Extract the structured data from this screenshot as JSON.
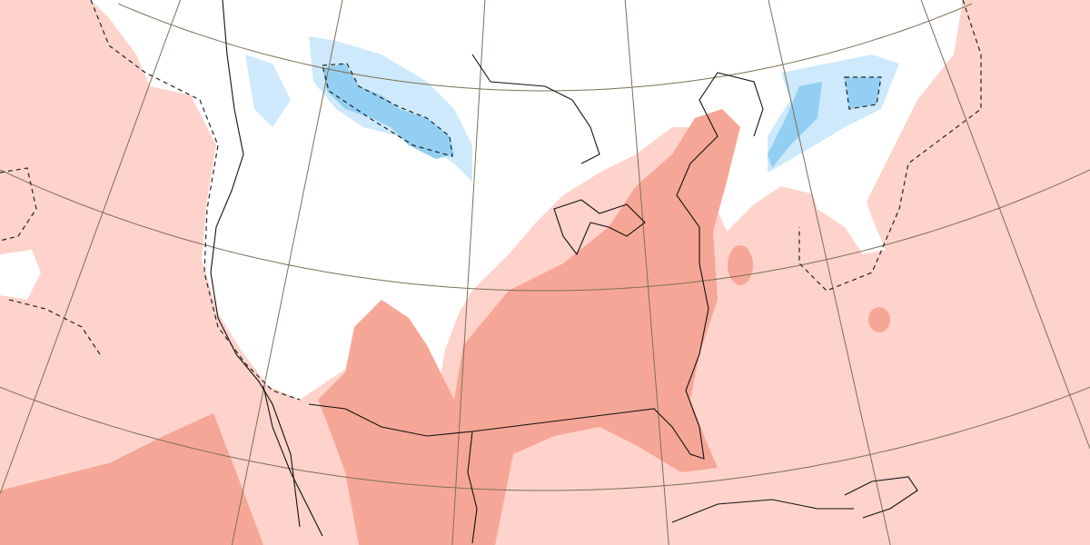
{
  "map": {
    "projection": "conic",
    "region": "North America",
    "colors": {
      "background_anomaly": "#fdd3cb",
      "neutral": "#ffffff",
      "warm_strong": "#f6a696",
      "cool_light": "#cde9fb",
      "cool_strong": "#93cff3",
      "coastline": "#111111",
      "graticule": "#7d6f55",
      "contour_dashed": "#222222"
    },
    "layers": [
      {
        "name": "warm-anomaly-light",
        "color_key": "background_anomaly"
      },
      {
        "name": "neutral-zone",
        "color_key": "neutral"
      },
      {
        "name": "warm-anomaly-strong",
        "color_key": "warm_strong"
      },
      {
        "name": "cool-anomaly-light",
        "color_key": "cool_light"
      },
      {
        "name": "cool-anomaly-strong",
        "color_key": "cool_strong"
      }
    ]
  }
}
